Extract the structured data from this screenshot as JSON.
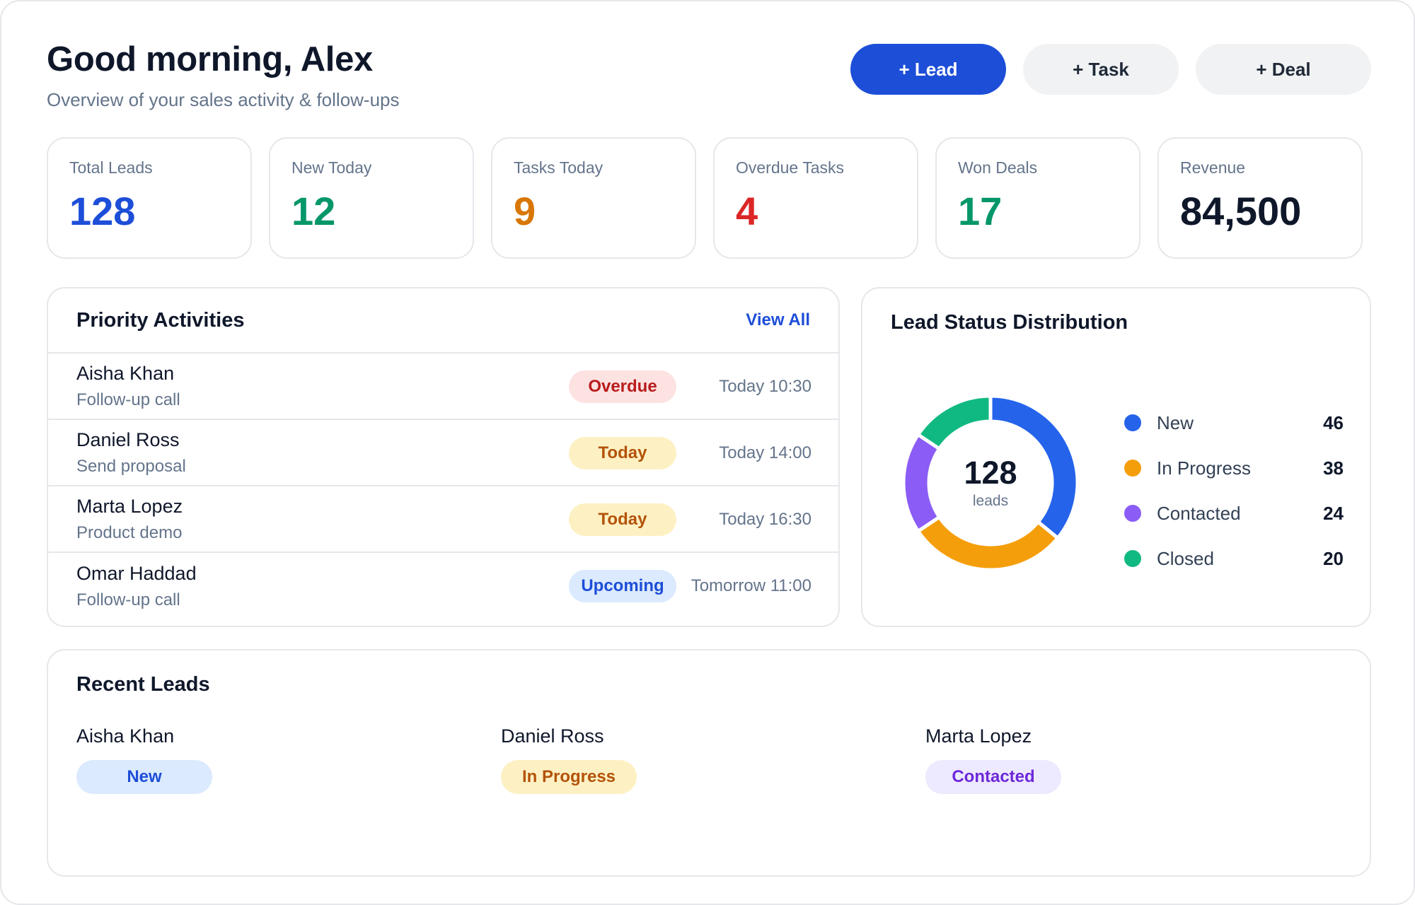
{
  "header": {
    "greeting": "Good morning, Alex",
    "subtitle": "Overview of your sales activity & follow-ups"
  },
  "actions": {
    "lead_label": "+ Lead",
    "task_label": "+ Task",
    "deal_label": "+ Deal"
  },
  "kpis": [
    {
      "label": "Total Leads",
      "value": "128",
      "color": "#1d4ed8"
    },
    {
      "label": "New Today",
      "value": "12",
      "color": "#059669"
    },
    {
      "label": "Tasks Today",
      "value": "9",
      "color": "#d97706"
    },
    {
      "label": "Overdue Tasks",
      "value": "4",
      "color": "#dc2626"
    },
    {
      "label": "Won Deals",
      "value": "17",
      "color": "#059669"
    },
    {
      "label": "Revenue",
      "value": "84,500",
      "color": "#0f172a"
    }
  ],
  "priority": {
    "title": "Priority Activities",
    "view_all": "View All",
    "items": [
      {
        "name": "Aisha Khan",
        "task": "Follow-up call",
        "status": "Overdue",
        "time": "Today 10:30"
      },
      {
        "name": "Daniel Ross",
        "task": "Send proposal",
        "status": "Today",
        "time": "Today 14:00"
      },
      {
        "name": "Marta Lopez",
        "task": "Product demo",
        "status": "Today",
        "time": "Today 16:30"
      },
      {
        "name": "Omar Haddad",
        "task": "Follow-up call",
        "status": "Upcoming",
        "time": "Tomorrow 11:00"
      }
    ]
  },
  "status_colors": {
    "Overdue": {
      "bg": "#fde2e2",
      "fg": "#b91c1c"
    },
    "Today": {
      "bg": "#fdf1c4",
      "fg": "#b45309"
    },
    "Upcoming": {
      "bg": "#dbeafe",
      "fg": "#1d4ed8"
    }
  },
  "distribution": {
    "title": "Lead Status Distribution",
    "total": "128",
    "unit": "leads",
    "items": [
      {
        "label": "New",
        "value": 46,
        "color": "#2563eb"
      },
      {
        "label": "In Progress",
        "value": 38,
        "color": "#f59e0b"
      },
      {
        "label": "Contacted",
        "value": 24,
        "color": "#8b5cf6"
      },
      {
        "label": "Closed",
        "value": 20,
        "color": "#10b981"
      }
    ]
  },
  "recent": {
    "title": "Recent Leads",
    "items": [
      {
        "name": "Aisha Khan",
        "status": "New",
        "bg": "#dbeafe",
        "fg": "#1d4ed8"
      },
      {
        "name": "Daniel Ross",
        "status": "In Progress",
        "bg": "#fdf1c4",
        "fg": "#b45309"
      },
      {
        "name": "Marta Lopez",
        "status": "Contacted",
        "bg": "#ede9fe",
        "fg": "#6d28d9"
      }
    ]
  }
}
